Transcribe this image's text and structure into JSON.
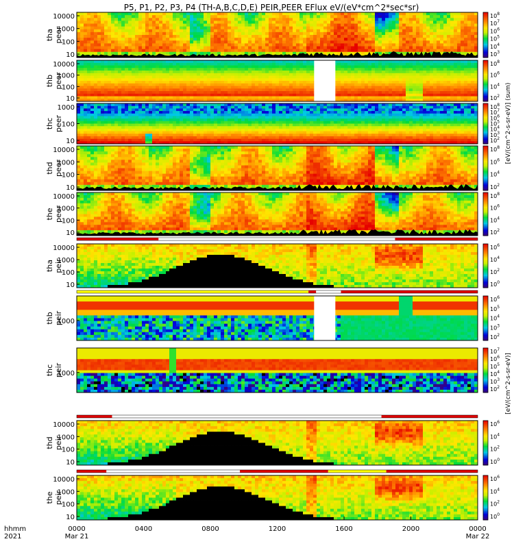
{
  "chart_data": {
    "type": "heatmap",
    "title": "P5, P1, P2, P3, P4 (TH-A,B,C,D,E) PEIR,PEER EFlux eV/(eV*cm^2*sec*sr)",
    "x_axis": {
      "row1_prefix": "hhmm",
      "row2_prefix": "2021",
      "ticks": [
        {
          "frac": 0.0,
          "label": "0000",
          "date": "Mar 21"
        },
        {
          "frac": 0.16667,
          "label": "0400",
          "date": ""
        },
        {
          "frac": 0.33333,
          "label": "0800",
          "date": ""
        },
        {
          "frac": 0.5,
          "label": "1200",
          "date": ""
        },
        {
          "frac": 0.66667,
          "label": "1600",
          "date": ""
        },
        {
          "frac": 0.83333,
          "label": "2000",
          "date": ""
        },
        {
          "frac": 1.0,
          "label": "0000",
          "date": "Mar 22"
        }
      ]
    },
    "panels": [
      {
        "name": "tha-peer",
        "label": [
          "tha",
          "peer"
        ],
        "yticks": [
          "10000",
          "1000",
          "100",
          "10"
        ],
        "cbar": [
          "10^8",
          "10^7",
          "10^6",
          "10^5",
          "10^4",
          "10^3"
        ],
        "profile": "peer-var",
        "gaps": [],
        "spine": "tha",
        "cb_offset": 0
      },
      {
        "name": "thb-peer",
        "label": [
          "thb",
          "peer"
        ],
        "yticks": [
          "10000",
          "1000",
          "100",
          "10"
        ],
        "cbar": [
          "10^8",
          "10^6",
          "10^4",
          "10^2"
        ],
        "profile": "peer-band",
        "gaps": [
          [
            0.592,
            0.645
          ]
        ],
        "spine": "",
        "cb_offset": 0
      },
      {
        "name": "thc-peer",
        "label": [
          "thc",
          "peer"
        ],
        "yticks": [
          "1000",
          "100",
          "10"
        ],
        "cbar": [
          "10^8",
          "10^7",
          "10^6",
          "10^5",
          "10^4",
          "10^3",
          "10^2"
        ],
        "profile": "peer-thc",
        "gaps": [],
        "spine": "",
        "cb_offset": 0
      },
      {
        "name": "thd-peer",
        "label": [
          "thd",
          "peer"
        ],
        "yticks": [
          "10000",
          "1000",
          "100",
          "10"
        ],
        "cbar": [
          "10^8",
          "10^6",
          "10^4",
          "10^2"
        ],
        "profile": "peer-var",
        "gaps": [],
        "spine": "thd",
        "cb_offset": 0
      },
      {
        "name": "the-peer",
        "label": [
          "the",
          "peer"
        ],
        "yticks": [
          "10000",
          "1000",
          "100",
          "10"
        ],
        "cbar": [
          "10^8",
          "10^6",
          "10^4",
          "10^2"
        ],
        "profile": "peer-var",
        "gaps": [],
        "spine": "the",
        "cb_offset": 0
      },
      {
        "name": "tha-peir",
        "label": [
          "tha",
          "peir"
        ],
        "yticks": [
          "10000",
          "1000",
          "100",
          "10"
        ],
        "cbar": [
          "10^6",
          "10^4",
          "10^2",
          "10^0"
        ],
        "profile": "peir-dome",
        "gaps": [],
        "spine": "",
        "cb_offset": 0
      },
      {
        "name": "thb-peir",
        "label": [
          "thb",
          "peir"
        ],
        "yticks": [
          "1000"
        ],
        "cbar": [
          "10^6",
          "10^5",
          "10^4",
          "10^3",
          "10^2"
        ],
        "profile": "peir-band",
        "gaps": [
          [
            0.592,
            0.645
          ]
        ],
        "spine": "",
        "cb_offset": 0
      },
      {
        "name": "thc-peir",
        "label": [
          "thc",
          "peir"
        ],
        "yticks": [
          "1000"
        ],
        "cbar": [
          "10^7",
          "10^6",
          "10^5",
          "10^4",
          "10^3",
          "10^2"
        ],
        "profile": "peir-band-c",
        "gaps": [],
        "spine": "",
        "cb_offset": 0
      },
      {
        "name": "thd-peir",
        "label": [
          "thd",
          "peir"
        ],
        "yticks": [
          "10000",
          "1000",
          "100",
          "10"
        ],
        "cbar": [
          "10^6",
          "10^4",
          "10^2",
          "10^0"
        ],
        "profile": "peir-dome",
        "gaps": [],
        "spine": "",
        "cb_offset": 0
      },
      {
        "name": "the-peir",
        "label": [
          "the",
          "peir"
        ],
        "yticks": [
          "10000",
          "1000",
          "100",
          "10"
        ],
        "cbar": [
          "10^6",
          "10^4",
          "10^2",
          "10^0"
        ],
        "profile": "peir-dome",
        "gaps": [],
        "spine": "",
        "cb_offset": 0
      }
    ],
    "mode_bars": [
      {
        "after_panel": 4,
        "segments": [
          [
            0.0,
            0.204,
            "#e00000"
          ],
          [
            0.204,
            0.794,
            "#ffffff"
          ],
          [
            0.794,
            1.0,
            "#e00000"
          ]
        ]
      },
      {
        "after_panel": 5,
        "segments": [
          [
            0.0,
            0.578,
            "#ffff00"
          ],
          [
            0.578,
            0.597,
            "#e00000"
          ],
          [
            0.597,
            0.659,
            "#ffffff"
          ],
          [
            0.659,
            1.0,
            "#e00000"
          ]
        ]
      },
      {
        "after_panel": 7,
        "segments": [
          [
            0.0,
            0.088,
            "#e00000"
          ],
          [
            0.088,
            0.76,
            "#ffffff"
          ],
          [
            0.76,
            1.0,
            "#e00000"
          ]
        ]
      },
      {
        "after_panel": 8,
        "segments": [
          [
            0.0,
            0.074,
            "#e00000"
          ],
          [
            0.074,
            0.407,
            "#ffffff"
          ],
          [
            0.407,
            0.627,
            "#e00000"
          ],
          [
            0.627,
            0.772,
            "#ffff00"
          ],
          [
            0.772,
            1.0,
            "#e00000"
          ]
        ]
      }
    ],
    "colorbar_unit_peer": "[eV/(cm^2-s-sr-eV)] (sum)",
    "colorbar_unit_peir": "[eV/(cm^2-s-sr-eV)]"
  }
}
